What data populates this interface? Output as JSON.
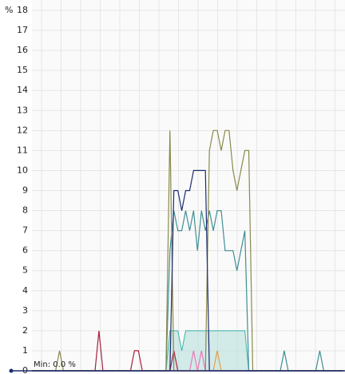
{
  "chart_data": {
    "type": "line",
    "y_label": "%",
    "annotation": "Min: 0.0 %",
    "ylim": [
      0,
      18
    ],
    "yticks": [
      0,
      1,
      2,
      3,
      4,
      5,
      6,
      7,
      8,
      9,
      10,
      11,
      12,
      13,
      14,
      15,
      16,
      17,
      18
    ],
    "grid": true,
    "series": [
      {
        "color": "#b0dcd8",
        "area": true,
        "values": [
          0,
          0,
          0,
          0,
          0,
          0,
          0,
          0,
          0,
          0,
          0,
          0,
          0,
          0,
          0,
          0,
          0,
          0,
          0,
          0,
          0,
          0,
          0,
          0,
          0,
          0,
          0,
          0,
          0,
          0,
          0,
          0,
          0,
          0,
          0,
          2,
          2,
          2,
          1,
          2,
          2,
          2,
          2,
          2,
          2,
          2,
          2,
          2,
          2,
          2,
          2,
          2,
          2,
          2,
          2,
          0,
          0,
          0,
          0,
          0,
          0,
          0,
          0,
          0,
          0,
          0,
          0,
          0,
          0,
          0,
          0,
          0,
          0,
          0,
          0,
          0,
          0,
          0,
          0,
          0
        ]
      },
      {
        "color": "#a8203a",
        "values": [
          0,
          0,
          0,
          0,
          0,
          0,
          0,
          0,
          0,
          0,
          0,
          0,
          0,
          0,
          0,
          0,
          0,
          2,
          0,
          0,
          0,
          0,
          0,
          0,
          0,
          0,
          1,
          1,
          0,
          0,
          0,
          0,
          0,
          0,
          0,
          0,
          1,
          0,
          0,
          0,
          0,
          0,
          0,
          0,
          0,
          0,
          0,
          0,
          0,
          0,
          0,
          0,
          0,
          0,
          0,
          0,
          0,
          0,
          0,
          0,
          0,
          0,
          0,
          0,
          0,
          0,
          0,
          0,
          0,
          0,
          0,
          0,
          0,
          0,
          0,
          0,
          0,
          0,
          0,
          0
        ]
      },
      {
        "color": "#e87ab8",
        "values": [
          0,
          0,
          0,
          0,
          0,
          0,
          0,
          0,
          0,
          0,
          0,
          0,
          0,
          0,
          0,
          0,
          0,
          0,
          0,
          0,
          0,
          0,
          0,
          0,
          0,
          0,
          0,
          0,
          0,
          0,
          0,
          0,
          0,
          0,
          0,
          0,
          0,
          0,
          0,
          0,
          0,
          1,
          0,
          1,
          0,
          0,
          0,
          0,
          0,
          0,
          0,
          0,
          0,
          0,
          0,
          0,
          0,
          0,
          0,
          0,
          0,
          0,
          0,
          0,
          0,
          0,
          0,
          0,
          0,
          0,
          0,
          0,
          0,
          0,
          0,
          0,
          0,
          0,
          0,
          0
        ]
      },
      {
        "color": "#e0a040",
        "values": [
          0,
          0,
          0,
          0,
          0,
          0,
          0,
          0,
          0,
          0,
          0,
          0,
          0,
          0,
          0,
          0,
          0,
          0,
          0,
          0,
          0,
          0,
          0,
          0,
          0,
          0,
          0,
          0,
          0,
          0,
          0,
          0,
          0,
          0,
          0,
          0,
          0,
          0,
          0,
          0,
          0,
          0,
          0,
          0,
          0,
          0,
          0,
          1,
          0,
          0,
          0,
          0,
          0,
          0,
          0,
          0,
          0,
          0,
          0,
          0,
          0,
          0,
          0,
          0,
          0,
          0,
          0,
          0,
          0,
          0,
          0,
          0,
          0,
          0,
          0,
          0,
          0,
          0,
          0,
          0
        ]
      },
      {
        "color": "#3e8f94",
        "values": [
          0,
          0,
          0,
          0,
          0,
          0,
          0,
          0,
          0,
          0,
          0,
          0,
          0,
          0,
          0,
          0,
          0,
          0,
          0,
          0,
          0,
          0,
          0,
          0,
          0,
          0,
          0,
          0,
          0,
          0,
          0,
          0,
          0,
          0,
          0,
          6,
          8,
          7,
          7,
          8,
          7,
          8,
          6,
          8,
          7,
          8,
          7,
          8,
          8,
          6,
          6,
          6,
          5,
          6,
          7,
          0,
          0,
          0,
          0,
          0,
          0,
          0,
          0,
          0,
          1,
          0,
          0,
          0,
          0,
          0,
          0,
          0,
          0,
          1,
          0,
          0,
          0,
          0,
          0,
          0
        ]
      },
      {
        "color": "#8a8a4c",
        "values": [
          0,
          0,
          0,
          0,
          0,
          0,
          0,
          1,
          0,
          0,
          0,
          0,
          0,
          0,
          0,
          0,
          0,
          0,
          0,
          0,
          0,
          0,
          0,
          0,
          0,
          0,
          0,
          0,
          0,
          0,
          0,
          0,
          0,
          0,
          0,
          12,
          0,
          0,
          0,
          0,
          0,
          0,
          0,
          0,
          0,
          11,
          12,
          12,
          11,
          12,
          12,
          10,
          9,
          10,
          11,
          11,
          0,
          0,
          0,
          0,
          0,
          0,
          0,
          0,
          0,
          0,
          0,
          0,
          0,
          0,
          0,
          0,
          0,
          0,
          0,
          0,
          0,
          0,
          0,
          0
        ]
      },
      {
        "color": "#1d2b6e",
        "values": [
          0,
          0,
          0,
          0,
          0,
          0,
          0,
          0,
          0,
          0,
          0,
          0,
          0,
          0,
          0,
          0,
          0,
          0,
          0,
          0,
          0,
          0,
          0,
          0,
          0,
          0,
          0,
          0,
          0,
          0,
          0,
          0,
          0,
          0,
          0,
          0,
          9,
          9,
          8,
          9,
          9,
          10,
          10,
          10,
          10,
          0,
          0,
          0,
          0,
          0,
          0,
          0,
          0,
          0,
          0,
          0,
          0,
          0,
          0,
          0,
          0,
          0,
          0,
          0,
          0,
          0,
          0,
          0,
          0,
          0,
          0,
          0,
          0,
          0,
          0,
          0,
          0,
          0,
          0,
          0
        ]
      }
    ]
  }
}
